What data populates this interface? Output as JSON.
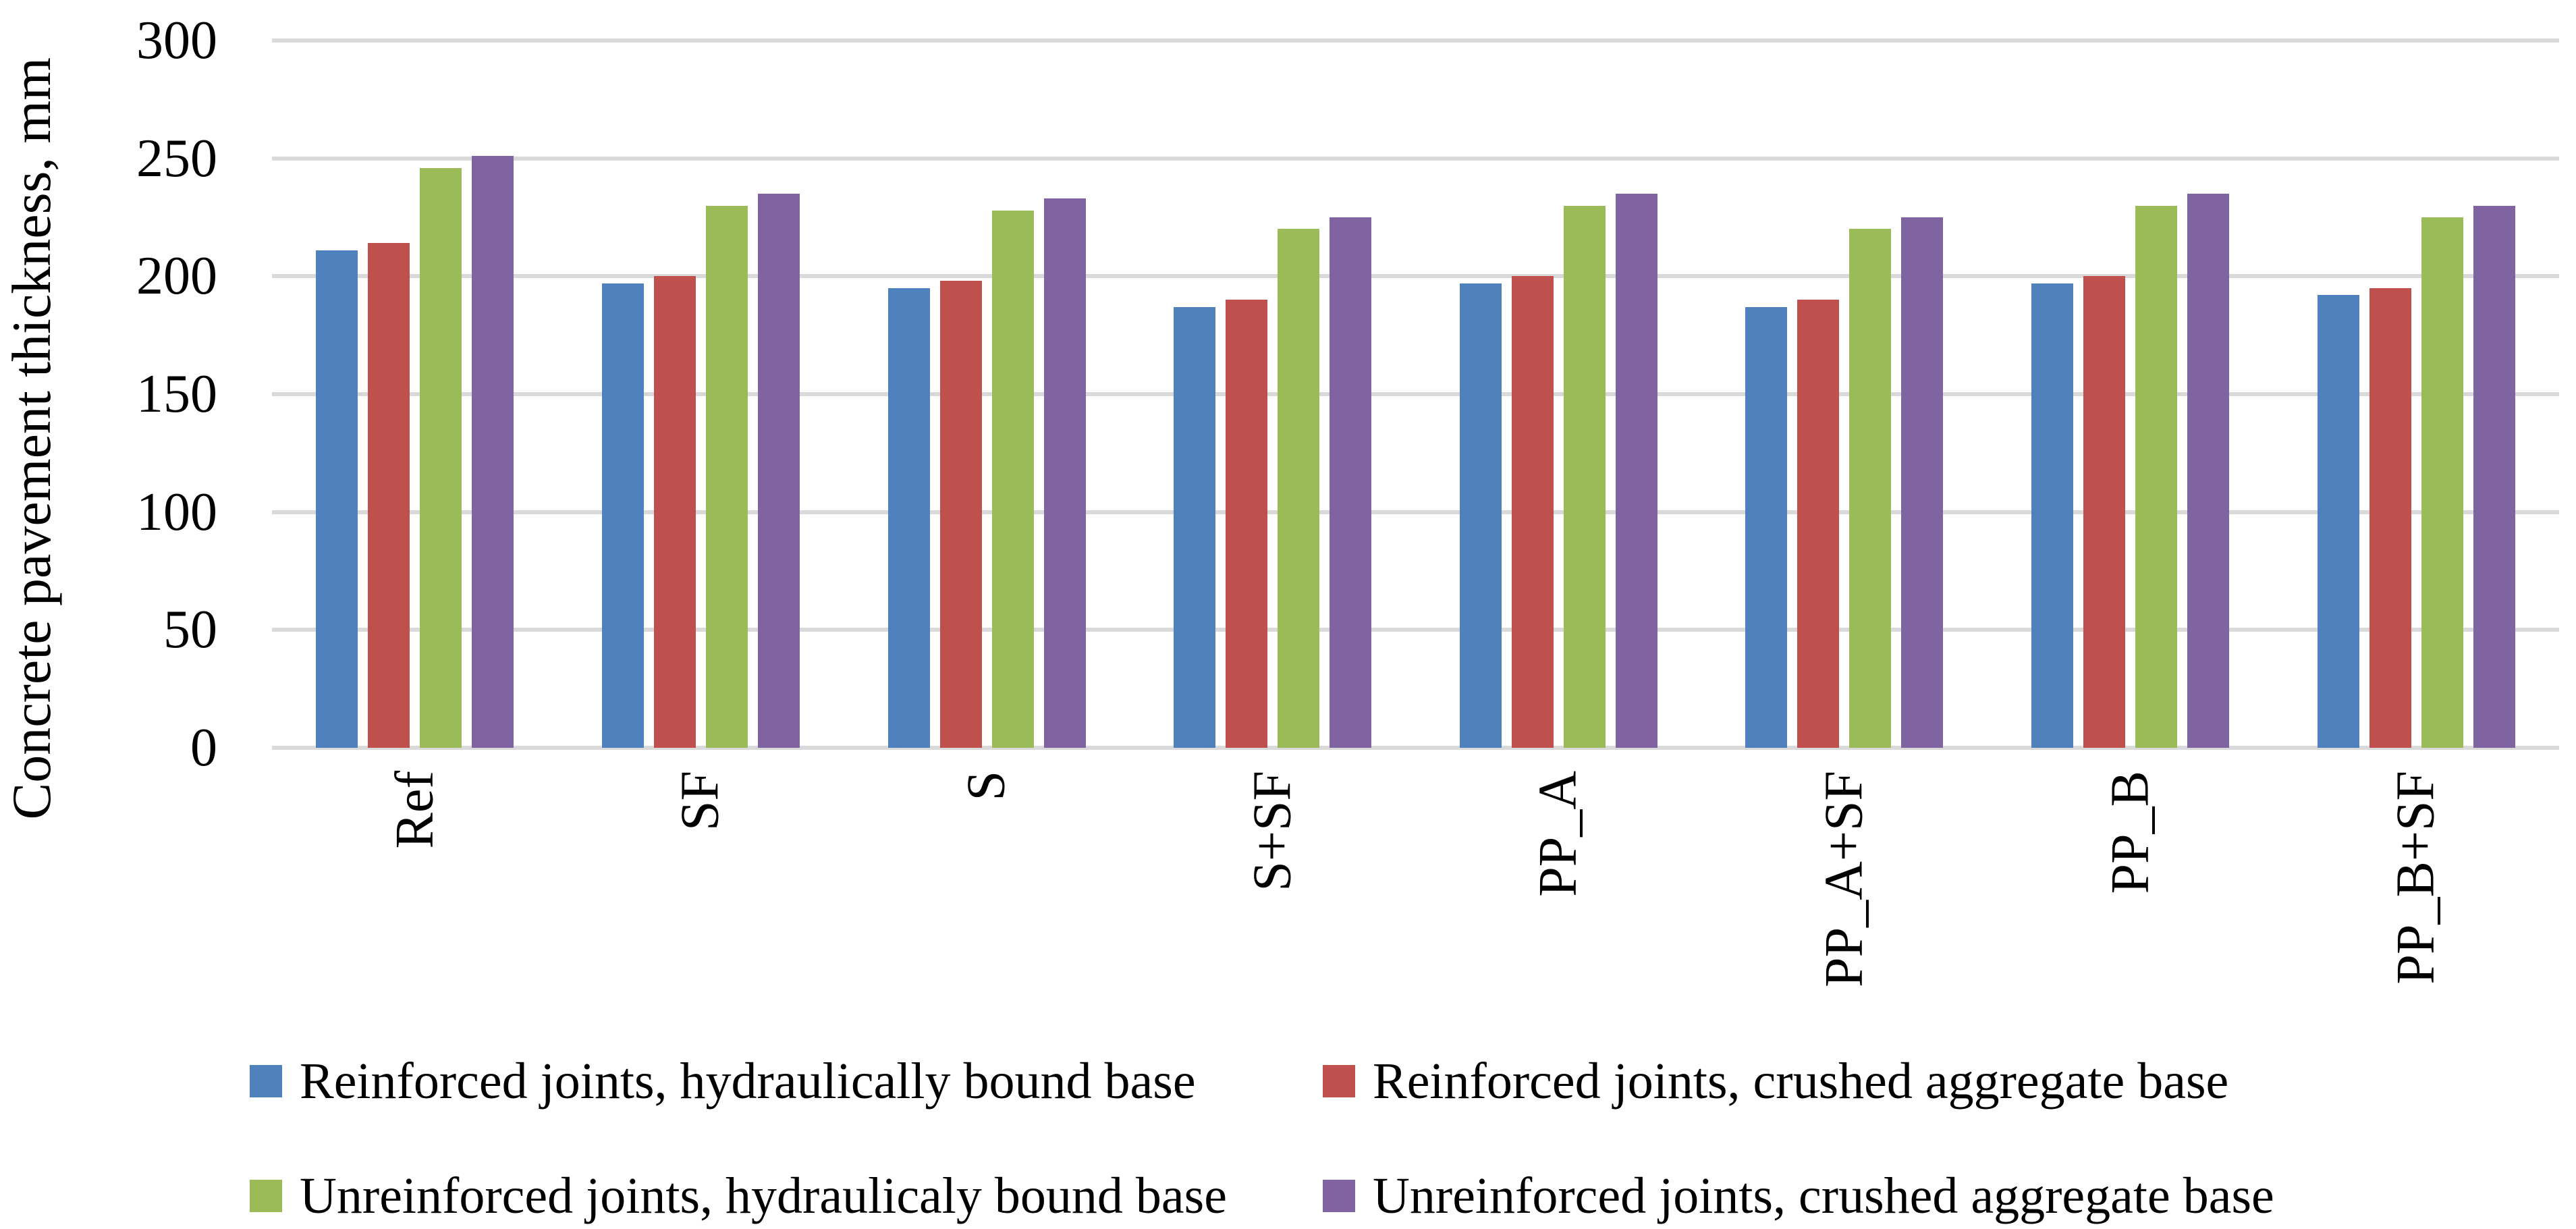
{
  "chart_data": {
    "type": "bar",
    "title": "",
    "xlabel": "",
    "ylabel": "Concrete pavement thickness, mm",
    "ylim": [
      0,
      300
    ],
    "yticks": [
      0,
      50,
      100,
      150,
      200,
      250,
      300
    ],
    "grid": true,
    "gridline_color": "#D9D9D9",
    "background_color": "#FFFFFF",
    "legend_position": "bottom",
    "categories": [
      "Ref",
      "SF",
      "S",
      "S+SF",
      "PP_A",
      "PP_A+SF",
      "PP_B",
      "PP_B+SF"
    ],
    "series": [
      {
        "name": "Reinforced joints, hydraulically bound base",
        "color": "#4F81BD",
        "values": [
          211,
          197,
          195,
          187,
          197,
          187,
          197,
          192
        ]
      },
      {
        "name": "Reinforced joints, crushed aggregate base",
        "color": "#C0504D",
        "values": [
          214,
          200,
          198,
          190,
          200,
          190,
          200,
          195
        ]
      },
      {
        "name": "Unreinforced joints, hydraulicaly bound base",
        "color": "#9BBB59",
        "values": [
          246,
          230,
          228,
          220,
          230,
          220,
          230,
          225
        ]
      },
      {
        "name": "Unreinforced joints, crushed aggregate base",
        "color": "#8064A2",
        "values": [
          251,
          235,
          233,
          225,
          235,
          225,
          235,
          230
        ]
      }
    ]
  }
}
